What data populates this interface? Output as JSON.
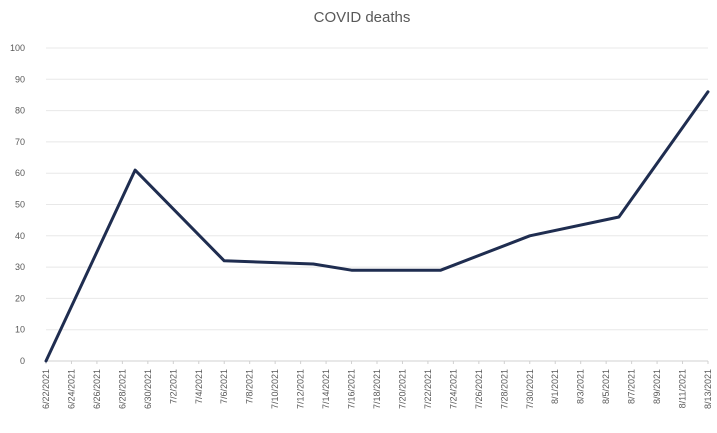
{
  "chart_data": {
    "type": "line",
    "title": "COVID deaths",
    "xlabel": "",
    "ylabel": "",
    "ylim": [
      0,
      100
    ],
    "yticks": [
      0,
      10,
      20,
      30,
      40,
      50,
      60,
      70,
      80,
      90,
      100
    ],
    "grid": true,
    "legend": "none",
    "x_tick_labels": [
      "6/22/2021",
      "6/24/2021",
      "6/26/2021",
      "6/28/2021",
      "6/30/2021",
      "7/2/2021",
      "7/4/2021",
      "7/6/2021",
      "7/8/2021",
      "7/10/2021",
      "7/12/2021",
      "7/14/2021",
      "7/16/2021",
      "7/18/2021",
      "7/20/2021",
      "7/22/2021",
      "7/24/2021",
      "7/26/2021",
      "7/28/2021",
      "7/30/2021",
      "8/1/2021",
      "8/3/2021",
      "8/5/2021",
      "8/7/2021",
      "8/9/2021",
      "8/11/2021",
      "8/13/2021"
    ],
    "series": [
      {
        "color": "#1f2d50",
        "points": [
          {
            "x": "6/22/2021",
            "y": 0
          },
          {
            "x": "6/29/2021",
            "y": 61
          },
          {
            "x": "7/6/2021",
            "y": 32
          },
          {
            "x": "7/13/2021",
            "y": 31
          },
          {
            "x": "7/16/2021",
            "y": 29
          },
          {
            "x": "7/23/2021",
            "y": 29
          },
          {
            "x": "7/30/2021",
            "y": 40
          },
          {
            "x": "8/6/2021",
            "y": 46
          },
          {
            "x": "8/13/2021",
            "y": 86
          }
        ]
      }
    ]
  }
}
